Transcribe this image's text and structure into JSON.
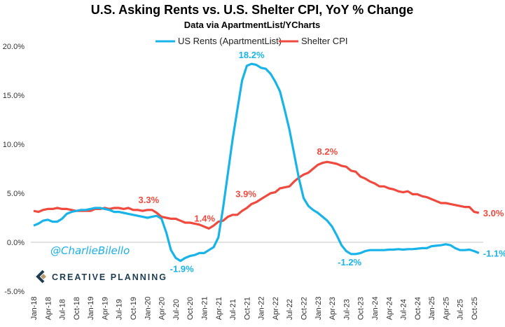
{
  "chart_data": {
    "type": "line",
    "title": "U.S. Asking Rents vs. U.S. Shelter CPI, YoY % Change",
    "subtitle": "Data via ApartmentList/YCharts",
    "ylim": [
      -5,
      20
    ],
    "yticks": [
      -5,
      0,
      5,
      10,
      15,
      20
    ],
    "ytick_labels": [
      "-5.0%",
      "0.0%",
      "5.0%",
      "10.0%",
      "15.0%",
      "20.0%"
    ],
    "xtick_labels": [
      "Jan-18",
      "Apr-18",
      "Jul-18",
      "Oct-18",
      "Jan-19",
      "Apr-19",
      "Jul-19",
      "Oct-19",
      "Jan-20",
      "Apr-20",
      "Jul-20",
      "Oct-20",
      "Jan-21",
      "Apr-21",
      "Jul-21",
      "Oct-21",
      "Jan-22",
      "Apr-22",
      "Jul-22",
      "Oct-22",
      "Jan-23",
      "Apr-23",
      "Jul-23",
      "Oct-23",
      "Jan-24",
      "Apr-24",
      "Jul-24",
      "Oct-24",
      "Jan-25",
      "Apr-25",
      "Jul-25",
      "Oct-25"
    ],
    "x_start": "Jan-18",
    "x_frequency": "monthly",
    "legend_position": "top-center",
    "series": [
      {
        "name": "US Rents (ApartmentList)",
        "color": "#18b4e9",
        "values": [
          1.7,
          1.9,
          2.2,
          2.3,
          2.1,
          2.1,
          2.4,
          2.9,
          3.1,
          3.2,
          3.3,
          3.3,
          3.4,
          3.5,
          3.5,
          3.4,
          3.3,
          3.1,
          3.1,
          3.0,
          2.9,
          2.8,
          2.7,
          2.6,
          2.5,
          2.6,
          2.7,
          2.4,
          1.0,
          -0.8,
          -1.6,
          -1.9,
          -1.6,
          -1.4,
          -1.3,
          -1.1,
          -1.1,
          -0.8,
          -0.5,
          0.5,
          3.5,
          7.0,
          10.5,
          13.5,
          16.5,
          18.0,
          18.2,
          18.1,
          17.8,
          17.7,
          17.2,
          16.4,
          15.4,
          13.5,
          11.5,
          9.0,
          6.5,
          4.5,
          3.7,
          3.3,
          3.0,
          2.6,
          2.2,
          1.6,
          0.7,
          -0.3,
          -0.9,
          -1.2,
          -1.2,
          -1.1,
          -0.9,
          -0.8,
          -0.8,
          -0.8,
          -0.8,
          -0.75,
          -0.75,
          -0.7,
          -0.75,
          -0.7,
          -0.7,
          -0.65,
          -0.6,
          -0.6,
          -0.4,
          -0.35,
          -0.3,
          -0.2,
          -0.3,
          -0.6,
          -0.8,
          -0.8,
          -0.75,
          -0.9,
          -1.1
        ]
      },
      {
        "name": "Shelter CPI",
        "color": "#f04a3e",
        "values": [
          3.2,
          3.1,
          3.3,
          3.4,
          3.4,
          3.5,
          3.4,
          3.4,
          3.3,
          3.2,
          3.2,
          3.2,
          3.2,
          3.4,
          3.4,
          3.5,
          3.4,
          3.5,
          3.5,
          3.4,
          3.5,
          3.3,
          3.3,
          3.2,
          3.3,
          3.3,
          3.0,
          2.6,
          2.5,
          2.4,
          2.4,
          2.2,
          2.0,
          2.0,
          1.9,
          1.8,
          1.6,
          1.4,
          1.7,
          2.1,
          2.2,
          2.6,
          2.8,
          2.8,
          3.2,
          3.5,
          3.9,
          4.1,
          4.4,
          4.7,
          5.0,
          5.1,
          5.5,
          5.6,
          5.7,
          6.2,
          6.6,
          6.9,
          7.1,
          7.5,
          7.9,
          8.1,
          8.2,
          8.1,
          8.0,
          7.8,
          7.7,
          7.3,
          7.2,
          6.7,
          6.5,
          6.2,
          6.0,
          5.7,
          5.7,
          5.5,
          5.4,
          5.2,
          5.1,
          5.2,
          4.9,
          4.9,
          4.7,
          4.6,
          4.4,
          4.2,
          4.0,
          4.0,
          3.9,
          3.8,
          3.7,
          3.6,
          3.6,
          3.1,
          3.0
        ]
      }
    ],
    "annotations": [
      {
        "series": 0,
        "index": 46,
        "text": "18.2%"
      },
      {
        "series": 0,
        "index": 31,
        "text": "-1.9%"
      },
      {
        "series": 0,
        "index": 67,
        "text": "-1.2%"
      },
      {
        "series": 0,
        "index": 94,
        "text": "-1.1%"
      },
      {
        "series": 1,
        "index": 24,
        "text": "3.3%"
      },
      {
        "series": 1,
        "index": 37,
        "text": "1.4%"
      },
      {
        "series": 1,
        "index": 46,
        "text": "3.9%"
      },
      {
        "series": 1,
        "index": 62,
        "text": "8.2%"
      },
      {
        "series": 1,
        "index": 94,
        "text": "3.0%"
      }
    ]
  },
  "watermark": {
    "handle": "@CharlieBilello",
    "logo": "CREATIVE PLANNING"
  }
}
